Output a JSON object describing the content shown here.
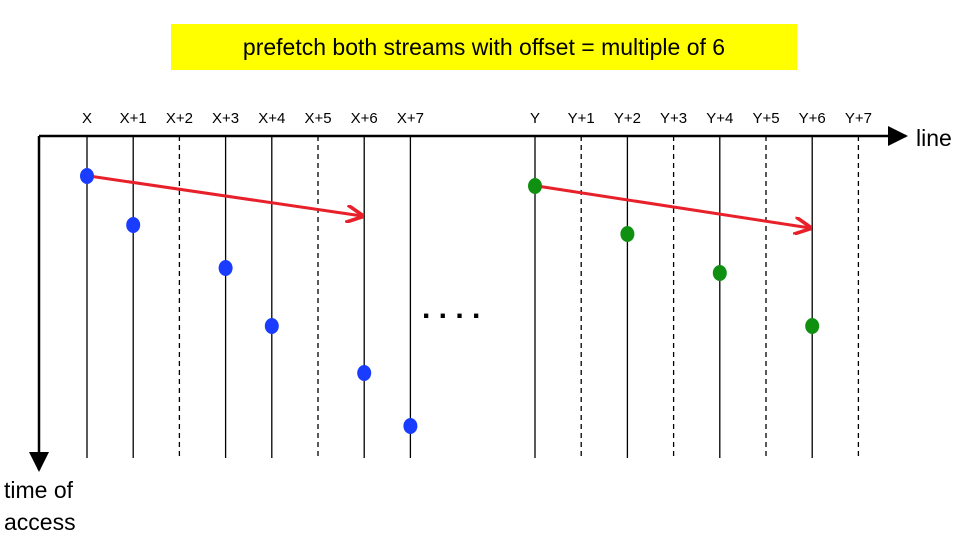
{
  "title": "prefetch both streams with offset = multiple of 6",
  "x_axis_label": "line",
  "y_axis_label_lines": [
    "time of",
    "access"
  ],
  "ellipsis": ". . . .",
  "stream_x": {
    "color": "#1a3cff",
    "line_labels": [
      "X",
      "X+1",
      "X+2",
      "X+3",
      "X+4",
      "X+5",
      "X+6",
      "X+7"
    ],
    "line_styles": [
      "solid",
      "solid",
      "dashed",
      "solid",
      "solid",
      "dashed",
      "solid",
      "solid"
    ],
    "accessed_offsets": [
      0,
      1,
      3,
      4,
      6,
      7
    ],
    "prefetch_arrow": {
      "from_offset": 0,
      "to_offset": 6
    }
  },
  "stream_y": {
    "color": "#109010",
    "line_labels": [
      "Y",
      "Y+1",
      "Y+2",
      "Y+3",
      "Y+4",
      "Y+5",
      "Y+6",
      "Y+7"
    ],
    "line_styles": [
      "solid",
      "dashed",
      "solid",
      "dashed",
      "solid",
      "dashed",
      "solid",
      "dashed"
    ],
    "accessed_offsets": [
      0,
      2,
      4,
      6
    ],
    "prefetch_arrow": {
      "from_offset": 0,
      "to_offset": 6
    }
  },
  "arrow_color": "#e8202a"
}
